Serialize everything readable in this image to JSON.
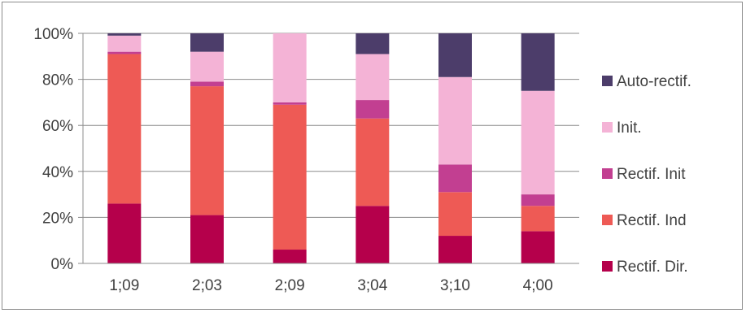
{
  "chart_data": {
    "type": "bar",
    "stacked": true,
    "percent_stacked": true,
    "categories": [
      "1;09",
      "2;03",
      "2;09",
      "3;04",
      "3;10",
      "4;00"
    ],
    "series": [
      {
        "name": "Rectif. Dir.",
        "color": "#b5004b",
        "values": [
          26,
          21,
          6,
          25,
          12,
          14
        ]
      },
      {
        "name": "Rectif. Ind",
        "color": "#ee5a55",
        "values": [
          65,
          56,
          63,
          38,
          19,
          11
        ]
      },
      {
        "name": "Rectif. Init",
        "color": "#c23f91",
        "values": [
          1,
          2,
          1,
          8,
          12,
          5
        ]
      },
      {
        "name": "Init.",
        "color": "#f4b3d6",
        "values": [
          7,
          13,
          30,
          20,
          38,
          45
        ]
      },
      {
        "name": "Auto-rectif.",
        "color": "#4c3d6a",
        "values": [
          1,
          8,
          0,
          9,
          19,
          25
        ]
      }
    ],
    "y_ticks": [
      "0%",
      "20%",
      "40%",
      "60%",
      "80%",
      "100%"
    ],
    "ylim": [
      0,
      100
    ],
    "grid": true,
    "legend_position": "right"
  }
}
